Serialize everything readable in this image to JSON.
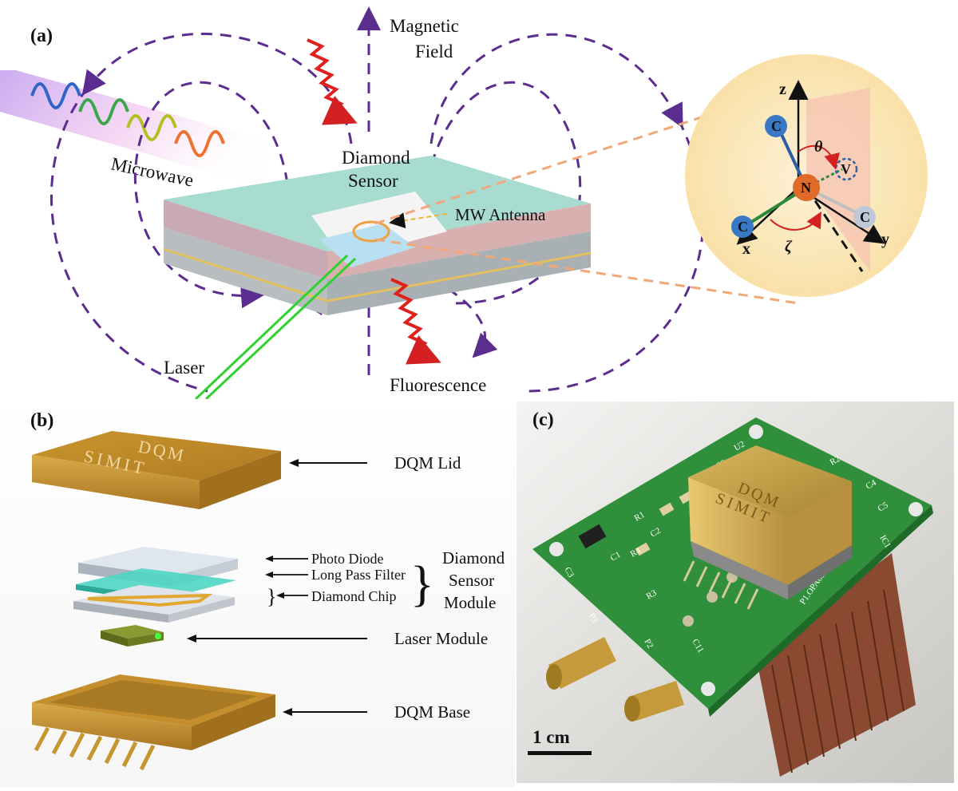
{
  "panel_a": {
    "label": "(a)",
    "magnetic_field": [
      "Magnetic",
      "Field"
    ],
    "microwave": "Microwave",
    "diamond_sensor": [
      "Diamond",
      "Sensor"
    ],
    "mw_antenna": "MW Antenna",
    "laser": "Laser",
    "fluorescence": "Fluorescence",
    "inset": {
      "axis_z": "z",
      "axis_x": "x",
      "axis_y": "y",
      "atom_n": "N",
      "atom_c": "C",
      "vacancy": "V",
      "theta": "θ",
      "zeta": "ζ"
    }
  },
  "panel_b": {
    "label": "(b)",
    "lid_engraving": [
      "DQM",
      "SIMIT"
    ],
    "dqm_lid": "DQM Lid",
    "photo_diode": "Photo Diode",
    "long_pass_filter": "Long Pass Filter",
    "diamond_chip": "Diamond Chip",
    "module_name": [
      "Diamond",
      "Sensor",
      "Module"
    ],
    "laser_module": "Laser Module",
    "dqm_base": "DQM Base"
  },
  "panel_c": {
    "label": "(c)",
    "scale_bar": "1 cm",
    "can_engraving": [
      "DQM",
      "SIMIT"
    ],
    "pcb_labels": [
      "U2",
      "R2",
      "C4",
      "C5",
      "IC1",
      "C3",
      "R1",
      "C1",
      "C2",
      "R4",
      "R3",
      "P3",
      "P2",
      "C11",
      "C9",
      "P1.OPA657-S"
    ]
  },
  "colors": {
    "field_lines": "#5b2d8e",
    "fluorescence": "#e0201c",
    "laser": "#2fd12f",
    "gold": "#c9a03c",
    "pcb": "#2f8f3a",
    "nitrogen": "#e06a2a",
    "carbon": "#3a78c4"
  }
}
